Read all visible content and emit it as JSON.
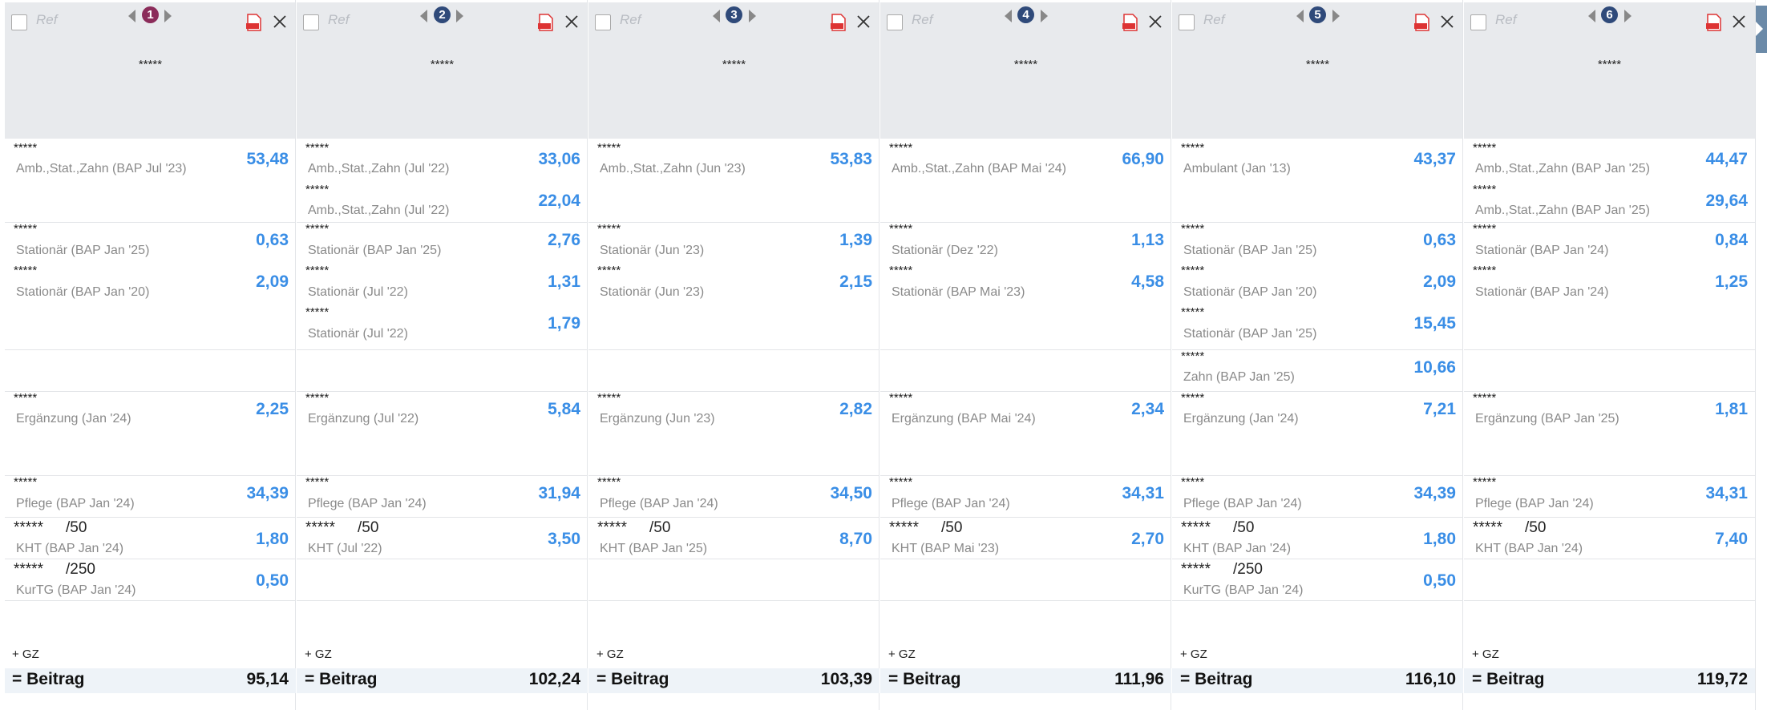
{
  "columns": [
    {
      "number": "1",
      "ref": "Ref",
      "name": "*****",
      "sections": [
        [
          {
            "name": "*****",
            "label": "Amb.,Stat.,Zahn (BAP Jul '23)",
            "value": "53,48"
          }
        ],
        [
          {
            "name": "*****",
            "label": "Stationär (BAP Jan '25)",
            "value": "0,63"
          },
          {
            "name": "*****",
            "label": "Stationär (BAP Jan '20)",
            "value": "2,09"
          }
        ],
        [],
        [
          {
            "name": "*****",
            "label": "Ergänzung (Jan '24)",
            "value": "2,25"
          }
        ],
        [
          {
            "name": "*****",
            "label": "Pflege (BAP Jan '24)",
            "value": "34,39"
          }
        ],
        [
          {
            "name": "*****",
            "limit": "/50",
            "label": "KHT (BAP Jan '24)",
            "value": "1,80"
          }
        ],
        [
          {
            "name": "*****",
            "limit": "/250",
            "label": "KurTG (BAP Jan '24)",
            "value": "0,50"
          }
        ]
      ],
      "gz": "+ GZ",
      "total_label": "= Beitrag",
      "total": "95,14"
    },
    {
      "number": "2",
      "ref": "Ref",
      "name": "*****",
      "sections": [
        [
          {
            "name": "*****",
            "label": "Amb.,Stat.,Zahn (Jul '22)",
            "value": "33,06"
          },
          {
            "name": "*****",
            "label": "Amb.,Stat.,Zahn (Jul '22)",
            "value": "22,04"
          }
        ],
        [
          {
            "name": "*****",
            "label": "Stationär (BAP Jan '25)",
            "value": "2,76"
          },
          {
            "name": "*****",
            "label": "Stationär (Jul '22)",
            "value": "1,31"
          },
          {
            "name": "*****",
            "label": "Stationär (Jul '22)",
            "value": "1,79"
          }
        ],
        [],
        [
          {
            "name": "*****",
            "label": "Ergänzung (Jul '22)",
            "value": "5,84"
          }
        ],
        [
          {
            "name": "*****",
            "label": "Pflege (BAP Jan '24)",
            "value": "31,94"
          }
        ],
        [
          {
            "name": "*****",
            "limit": "/50",
            "label": "KHT (Jul '22)",
            "value": "3,50"
          }
        ],
        []
      ],
      "gz": "+ GZ",
      "total_label": "= Beitrag",
      "total": "102,24"
    },
    {
      "number": "3",
      "ref": "Ref",
      "name": "*****",
      "sections": [
        [
          {
            "name": "*****",
            "label": "Amb.,Stat.,Zahn (Jun '23)",
            "value": "53,83"
          }
        ],
        [
          {
            "name": "*****",
            "label": "Stationär (Jun '23)",
            "value": "1,39"
          },
          {
            "name": "*****",
            "label": "Stationär (Jun '23)",
            "value": "2,15"
          }
        ],
        [],
        [
          {
            "name": "*****",
            "label": "Ergänzung (Jun '23)",
            "value": "2,82"
          }
        ],
        [
          {
            "name": "*****",
            "label": "Pflege (BAP Jan '24)",
            "value": "34,50"
          }
        ],
        [
          {
            "name": "*****",
            "limit": "/50",
            "label": "KHT (BAP Jan '25)",
            "value": "8,70"
          }
        ],
        []
      ],
      "gz": "+ GZ",
      "total_label": "= Beitrag",
      "total": "103,39"
    },
    {
      "number": "4",
      "ref": "Ref",
      "name": "*****",
      "sections": [
        [
          {
            "name": "*****",
            "label": "Amb.,Stat.,Zahn (BAP Mai '24)",
            "value": "66,90"
          }
        ],
        [
          {
            "name": "*****",
            "label": "Stationär (Dez '22)",
            "value": "1,13"
          },
          {
            "name": "*****",
            "label": "Stationär (BAP Mai '23)",
            "value": "4,58"
          }
        ],
        [],
        [
          {
            "name": "*****",
            "label": "Ergänzung (BAP Mai '24)",
            "value": "2,34"
          }
        ],
        [
          {
            "name": "*****",
            "label": "Pflege (BAP Jan '24)",
            "value": "34,31"
          }
        ],
        [
          {
            "name": "*****",
            "limit": "/50",
            "label": "KHT (BAP Mai '23)",
            "value": "2,70"
          }
        ],
        []
      ],
      "gz": "+ GZ",
      "total_label": "= Beitrag",
      "total": "111,96"
    },
    {
      "number": "5",
      "ref": "Ref",
      "name": "*****",
      "sections": [
        [
          {
            "name": "*****",
            "label": "Ambulant (Jan '13)",
            "value": "43,37"
          }
        ],
        [
          {
            "name": "*****",
            "label": "Stationär (BAP Jan '25)",
            "value": "0,63"
          },
          {
            "name": "*****",
            "label": "Stationär (BAP Jan '20)",
            "value": "2,09"
          },
          {
            "name": "*****",
            "label": "Stationär (BAP Jan '25)",
            "value": "15,45"
          }
        ],
        [
          {
            "name": "*****",
            "label": "Zahn (BAP Jan '25)",
            "value": "10,66"
          }
        ],
        [
          {
            "name": "*****",
            "label": "Ergänzung (Jan '24)",
            "value": "7,21"
          }
        ],
        [
          {
            "name": "*****",
            "label": "Pflege (BAP Jan '24)",
            "value": "34,39"
          }
        ],
        [
          {
            "name": "*****",
            "limit": "/50",
            "label": "KHT (BAP Jan '24)",
            "value": "1,80"
          }
        ],
        [
          {
            "name": "*****",
            "limit": "/250",
            "label": "KurTG (BAP Jan '24)",
            "value": "0,50"
          }
        ]
      ],
      "gz": "+ GZ",
      "total_label": "= Beitrag",
      "total": "116,10"
    },
    {
      "number": "6",
      "ref": "Ref",
      "name": "*****",
      "sections": [
        [
          {
            "name": "*****",
            "label": "Amb.,Stat.,Zahn (BAP Jan '25)",
            "value": "44,47"
          },
          {
            "name": "*****",
            "label": "Amb.,Stat.,Zahn (BAP Jan '25)",
            "value": "29,64"
          }
        ],
        [
          {
            "name": "*****",
            "label": "Stationär (BAP Jan '24)",
            "value": "0,84"
          },
          {
            "name": "*****",
            "label": "Stationär (BAP Jan '24)",
            "value": "1,25"
          }
        ],
        [],
        [
          {
            "name": "*****",
            "label": "Ergänzung (BAP Jan '25)",
            "value": "1,81"
          }
        ],
        [
          {
            "name": "*****",
            "label": "Pflege (BAP Jan '24)",
            "value": "34,31"
          }
        ],
        [
          {
            "name": "*****",
            "limit": "/50",
            "label": "KHT (BAP Jan '24)",
            "value": "7,40"
          }
        ],
        []
      ],
      "gz": "+ GZ",
      "total_label": "= Beitrag",
      "total": "119,72"
    }
  ]
}
